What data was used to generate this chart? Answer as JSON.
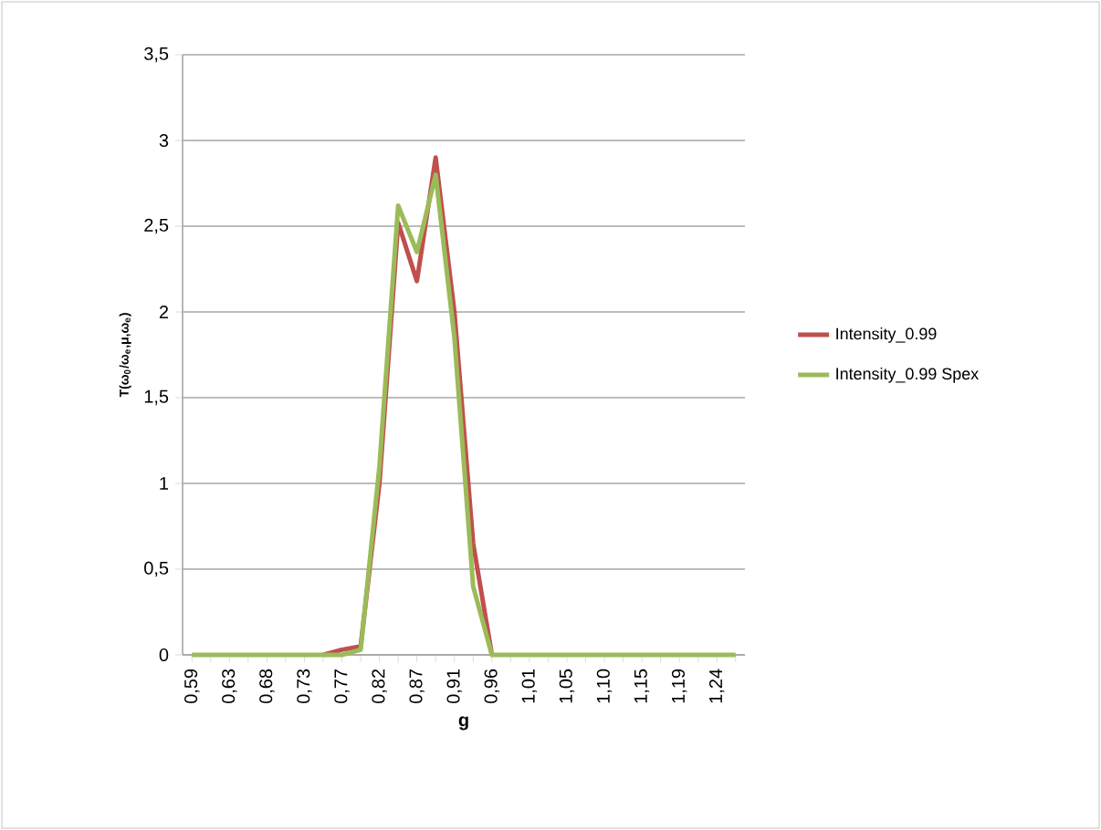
{
  "chart_data": {
    "type": "line",
    "xlabel": "g",
    "ylabel": "T(ω$_{0}$/ω$_{e}$,μ,ω$_{e}$)",
    "categories": [
      "0,59",
      null,
      "0,63",
      null,
      "0,68",
      null,
      "0,73",
      null,
      "0,77",
      null,
      "0,82",
      null,
      "0,87",
      null,
      "0,91",
      null,
      "0,96",
      null,
      "1,01",
      null,
      "1,05",
      null,
      "1,10",
      null,
      "1,15",
      null,
      "1,19",
      null,
      "1,24",
      null
    ],
    "series": [
      {
        "name": "Intensity_0.99",
        "color": "#c0504d",
        "values": [
          null,
          null,
          null,
          null,
          null,
          null,
          null,
          0,
          0.03,
          0.05,
          1.0,
          2.52,
          2.18,
          2.9,
          2.0,
          0.65,
          0,
          null,
          null,
          null,
          null,
          null,
          null,
          null,
          null,
          null,
          null,
          null,
          null,
          null
        ]
      },
      {
        "name": "Intensity_0.99 Spex",
        "color": "#9bbb59",
        "values": [
          0,
          0,
          0,
          0,
          0,
          0,
          0,
          0,
          0,
          0.03,
          1.1,
          2.62,
          2.35,
          2.8,
          1.85,
          0.4,
          0,
          0,
          0,
          0,
          0,
          0,
          0,
          0,
          0,
          0,
          0,
          0,
          0,
          0
        ]
      }
    ],
    "ylim": [
      0,
      3.5
    ],
    "yticks": [
      0,
      {
        "value": 0.5,
        "label": "0,5"
      },
      1,
      {
        "value": 1.5,
        "label": "1,5"
      },
      2,
      {
        "value": 2.5,
        "label": "2,5"
      },
      3,
      {
        "value": 3.5,
        "label": "3,5"
      }
    ],
    "grid": "y",
    "legend": "right",
    "marker": "none"
  }
}
